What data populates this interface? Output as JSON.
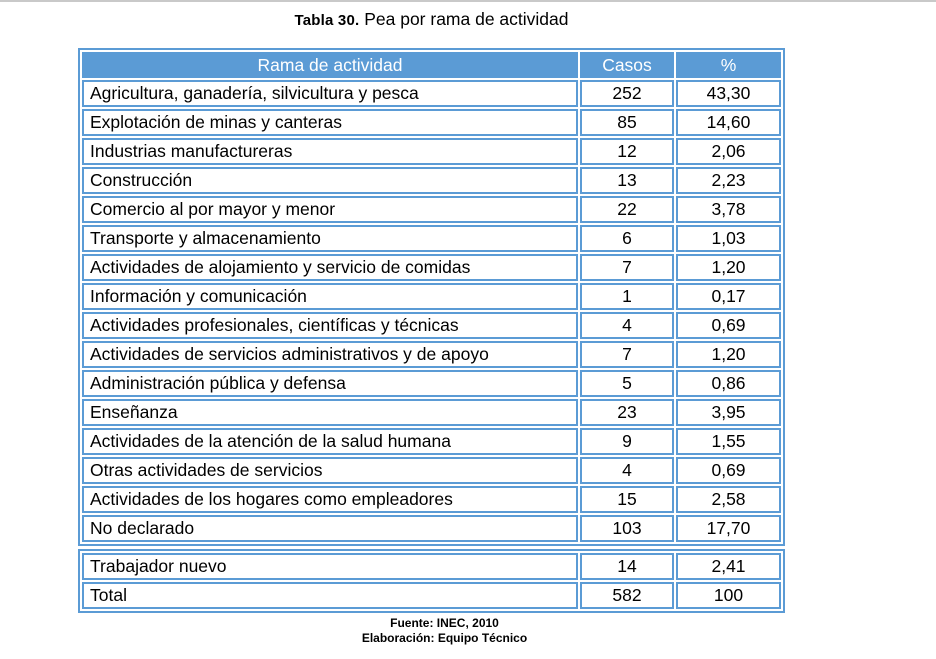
{
  "caption": {
    "label": "Tabla 30.",
    "title": " Pea por rama de actividad"
  },
  "table": {
    "headers": [
      "Rama de actividad",
      "Casos",
      "%"
    ],
    "rows": [
      [
        "Agricultura, ganadería, silvicultura y pesca",
        "252",
        "43,30"
      ],
      [
        "Explotación de minas y canteras",
        "85",
        "14,60"
      ],
      [
        "Industrias manufactureras",
        "12",
        "2,06"
      ],
      [
        "Construcción",
        "13",
        "2,23"
      ],
      [
        "Comercio al por mayor y menor",
        "22",
        "3,78"
      ],
      [
        "Transporte y almacenamiento",
        "6",
        "1,03"
      ],
      [
        "Actividades de alojamiento y servicio de comidas",
        "7",
        "1,20"
      ],
      [
        "Información y comunicación",
        "1",
        "0,17"
      ],
      [
        "Actividades profesionales, científicas y técnicas",
        "4",
        "0,69"
      ],
      [
        "Actividades de servicios administrativos y de apoyo",
        "7",
        "1,20"
      ],
      [
        "Administración pública y defensa",
        "5",
        "0,86"
      ],
      [
        "Enseñanza",
        "23",
        "3,95"
      ],
      [
        "Actividades de la atención de la salud humana",
        "9",
        "1,55"
      ],
      [
        "Otras actividades de servicios",
        "4",
        "0,69"
      ],
      [
        "Actividades de los hogares como empleadores",
        "15",
        "2,58"
      ],
      [
        "No declarado",
        "103",
        "17,70"
      ]
    ],
    "summary_rows": [
      [
        "Trabajador nuevo",
        "14",
        "2,41"
      ],
      [
        "Total",
        "582",
        "100"
      ]
    ]
  },
  "footer": {
    "fuente": "Fuente: INEC, 2010",
    "elaboracion": "Elaboración: Equipo Técnico"
  },
  "colors": {
    "accent": "#5B9BD5",
    "header_text": "#FFFFFF",
    "page_top_line": "#C9C9C9"
  }
}
